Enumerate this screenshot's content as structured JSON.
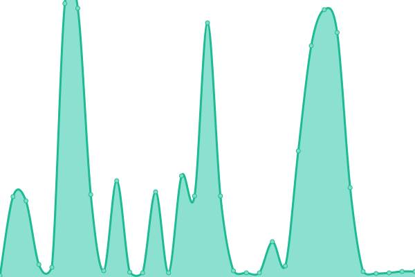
{
  "chart_data": {
    "type": "area",
    "title": "",
    "xlabel": "",
    "ylabel": "",
    "xlim": [
      0,
      32
    ],
    "ylim": [
      0,
      400
    ],
    "grid": false,
    "legend": "none",
    "smooth": true,
    "x": [
      0,
      1,
      2,
      3,
      4,
      5,
      6,
      7,
      8,
      9,
      10,
      11,
      12,
      13,
      14,
      15,
      16,
      17,
      18,
      19,
      20,
      21,
      22,
      23,
      24,
      25,
      26,
      27,
      28,
      29,
      30,
      31,
      32
    ],
    "series": [
      {
        "values": [
          2,
          116,
          110,
          18,
          14,
          395,
          388,
          119,
          9,
          139,
          7,
          6,
          123,
          6,
          146,
          117,
          367,
          117,
          9,
          6,
          6,
          51,
          16,
          182,
          334,
          386,
          353,
          129,
          8,
          5,
          6,
          8,
          8
        ]
      }
    ],
    "colors": {
      "line": "#1dbb93",
      "fill": "#8ce0cf",
      "point_fill": "#7fdcc4",
      "point_stroke": "#1dbb93"
    }
  }
}
